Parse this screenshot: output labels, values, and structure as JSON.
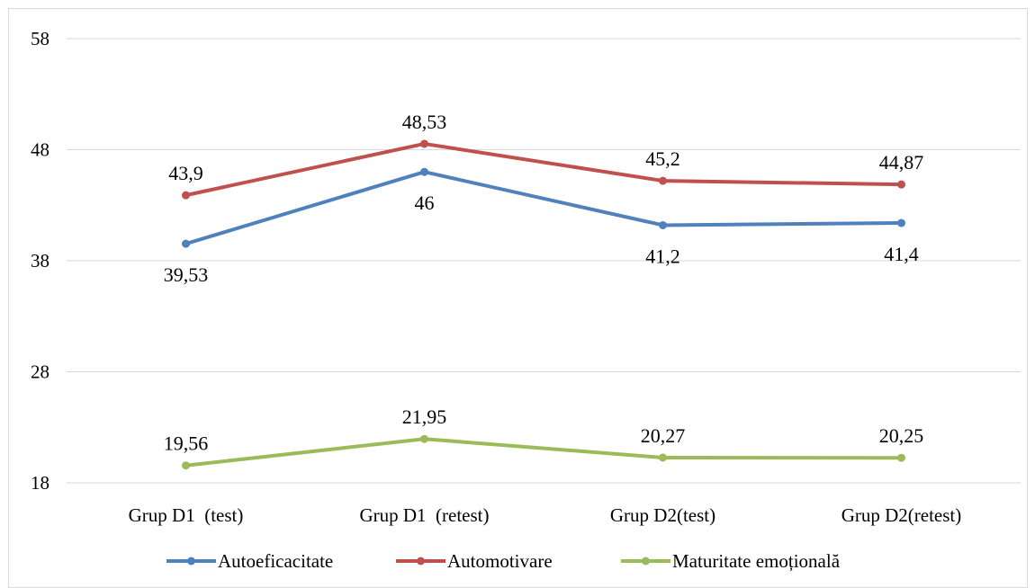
{
  "chart_data": {
    "type": "line",
    "title": "",
    "xlabel": "",
    "ylabel": "",
    "categories": [
      "Grup D1  (test)",
      "Grup D1  (retest)",
      "Grup D2(test)",
      "Grup D2(retest)"
    ],
    "ylim": [
      18,
      58
    ],
    "yticks": [
      18,
      28,
      38,
      48,
      58
    ],
    "ytick_labels": [
      "18",
      "28",
      "38",
      "48",
      "58"
    ],
    "grid": true,
    "legend_position": "bottom",
    "series": [
      {
        "name": "Autoeficacitate",
        "color": "#4f81bd",
        "values": [
          39.53,
          46,
          41.2,
          41.4
        ],
        "labels": [
          "39,53",
          "46",
          "41,2",
          "41,4"
        ],
        "label_position": "below"
      },
      {
        "name": "Automotivare",
        "color": "#c0504d",
        "values": [
          43.9,
          48.53,
          45.2,
          44.87
        ],
        "labels": [
          "43,9",
          "48,53",
          "45,2",
          "44,87"
        ],
        "label_position": "above"
      },
      {
        "name": "Maturitate emoțională",
        "color": "#9bbb59",
        "values": [
          19.56,
          21.95,
          20.27,
          20.25
        ],
        "labels": [
          "19,56",
          "21,95",
          "20,27",
          "20,25"
        ],
        "label_position": "above"
      }
    ]
  }
}
